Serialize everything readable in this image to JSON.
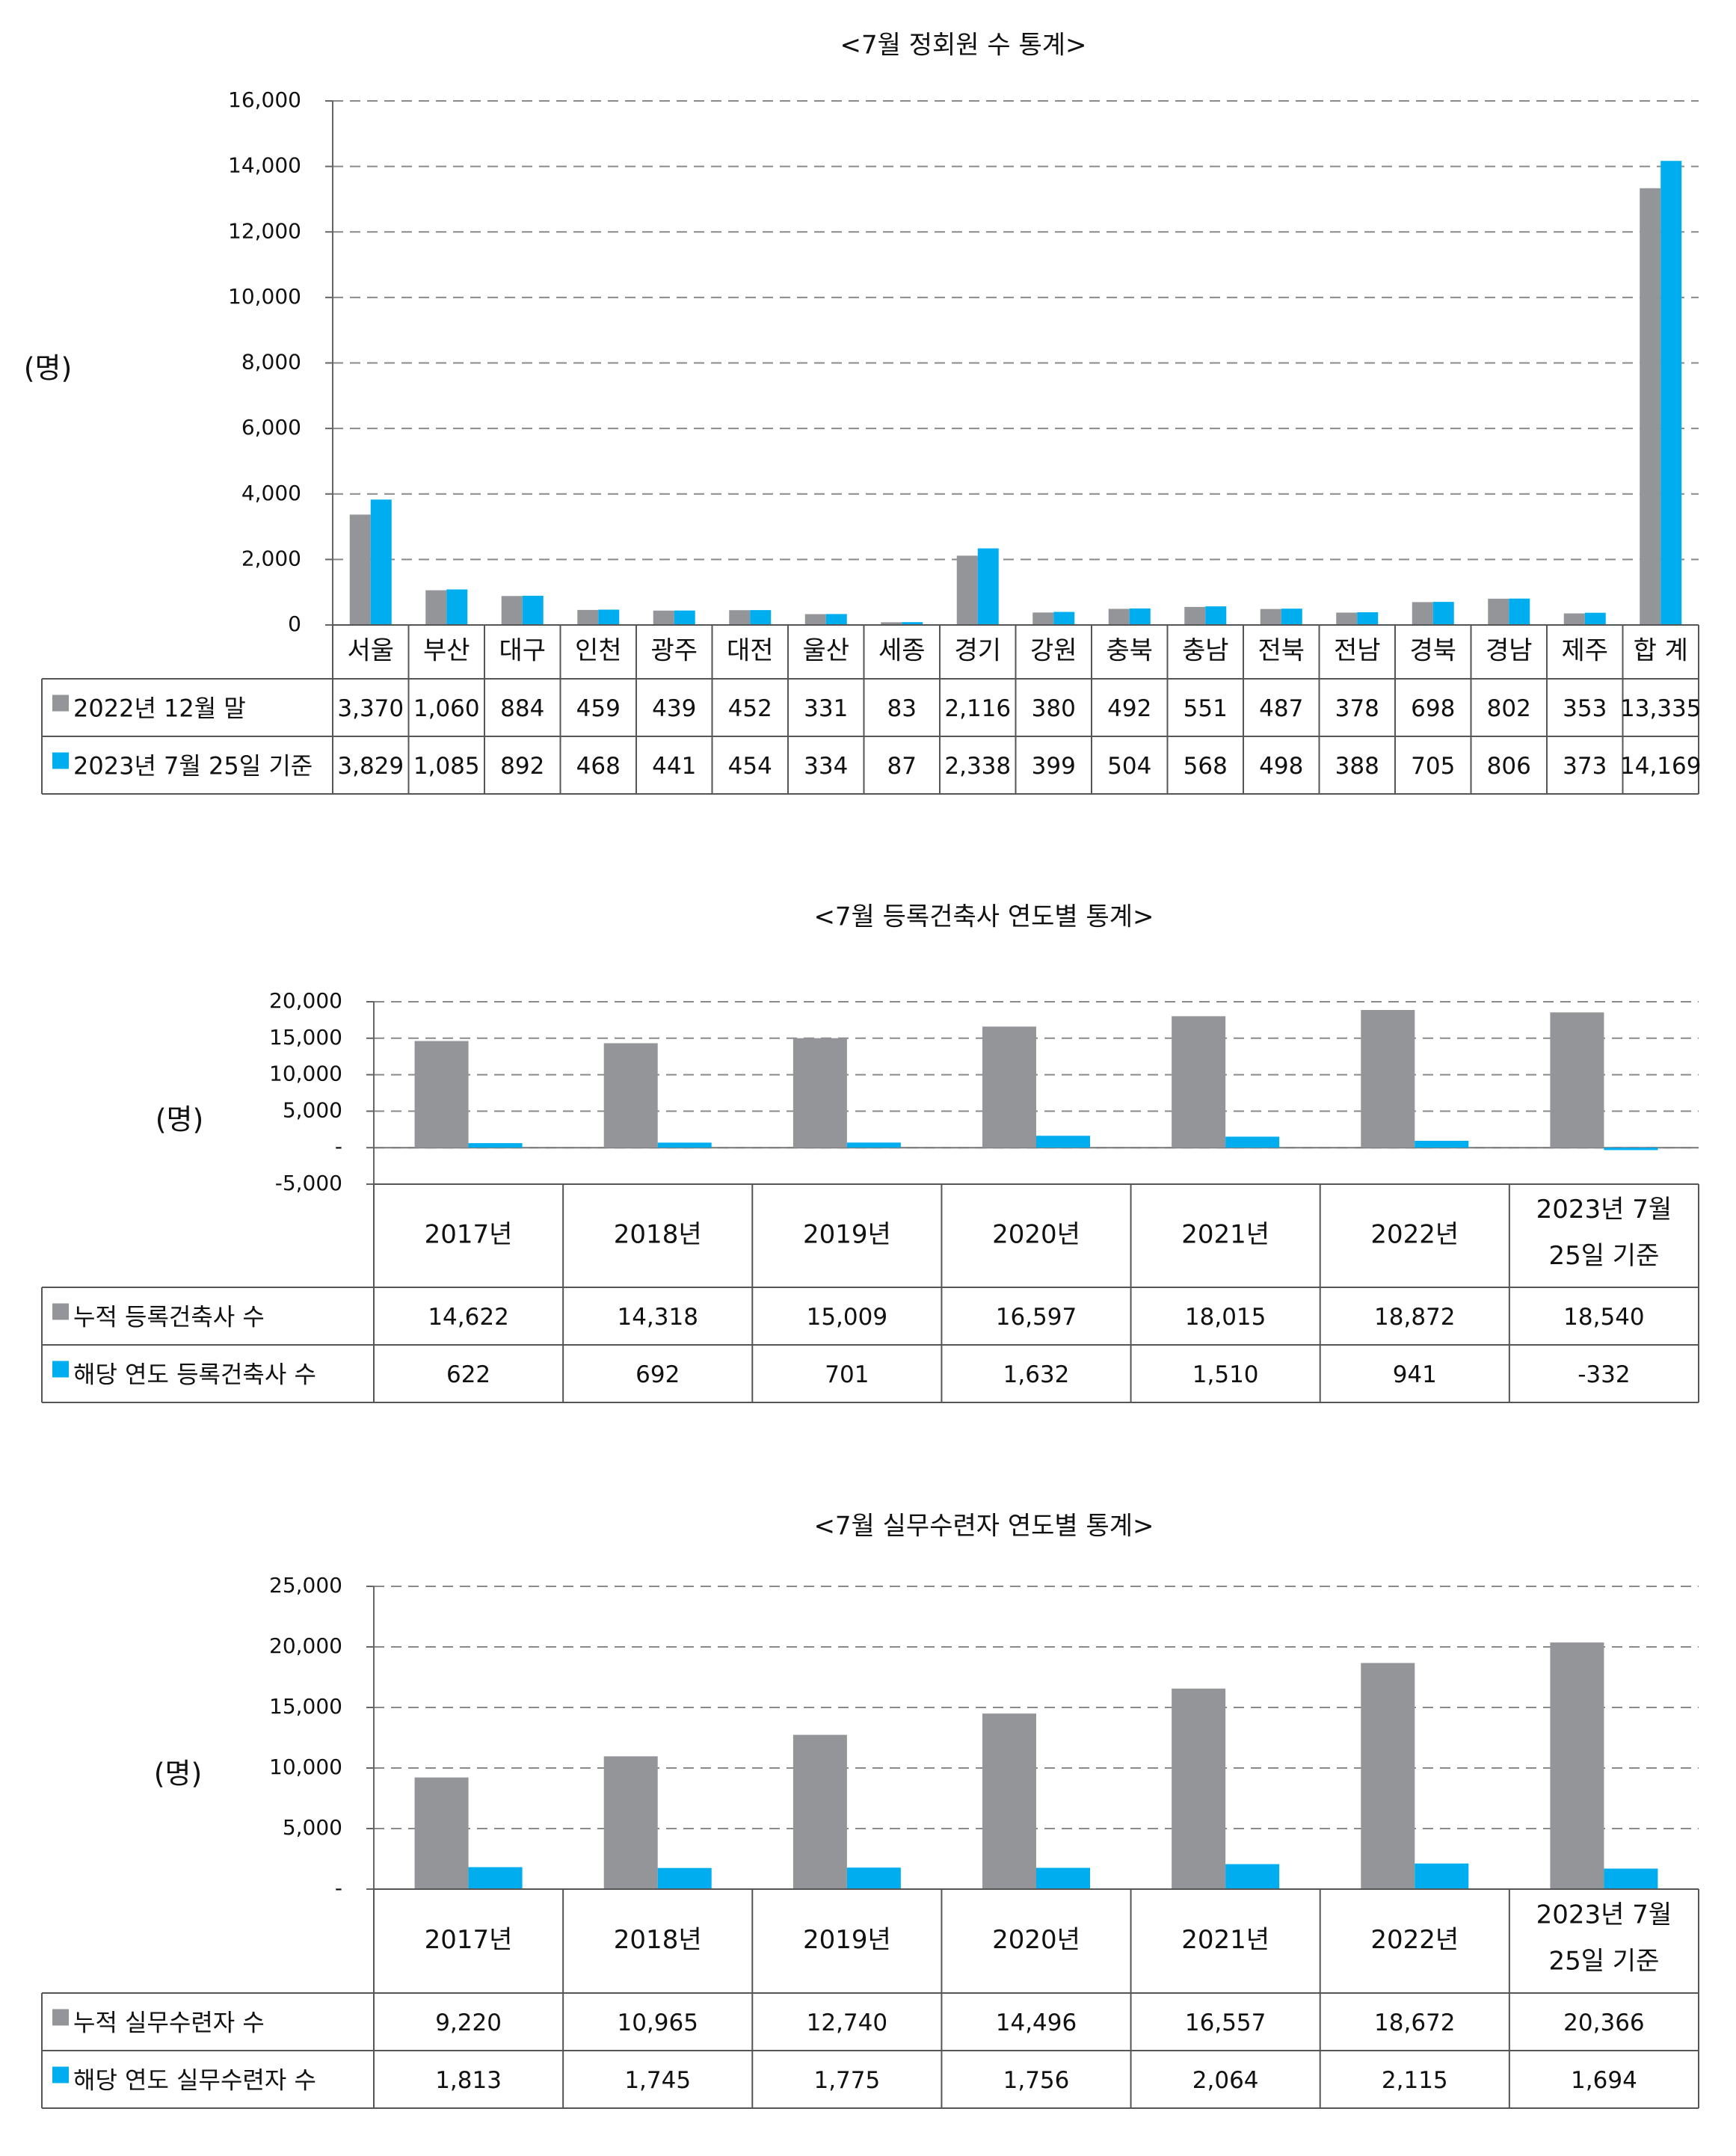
{
  "chart_data": [
    {
      "type": "bar",
      "title": "<7월 정회원 수 통계>",
      "ylabel": "(명)",
      "ylim": [
        0,
        16000
      ],
      "yticks": [
        "16,000",
        "14,000",
        "12,000",
        "10,000",
        "8,000",
        "6,000",
        "4,000",
        "2,000",
        "0"
      ],
      "ytick_values": [
        16000,
        14000,
        12000,
        10000,
        8000,
        6000,
        4000,
        2000,
        0
      ],
      "categories": [
        "서울",
        "부산",
        "대구",
        "인천",
        "광주",
        "대전",
        "울산",
        "세종",
        "경기",
        "강원",
        "충북",
        "충남",
        "전북",
        "전남",
        "경북",
        "경남",
        "제주",
        "합 계"
      ],
      "series": [
        {
          "name": "2022년 12월 말",
          "color": "#939598",
          "values": [
            3370,
            1060,
            884,
            459,
            439,
            452,
            331,
            83,
            2116,
            380,
            492,
            551,
            487,
            378,
            698,
            802,
            353,
            13335
          ],
          "labels": [
            "3,370",
            "1,060",
            "884",
            "459",
            "439",
            "452",
            "331",
            "83",
            "2,116",
            "380",
            "492",
            "551",
            "487",
            "378",
            "698",
            "802",
            "353",
            "13,335"
          ]
        },
        {
          "name": "2023년 7월 25일 기준",
          "color": "#00aeef",
          "values": [
            3829,
            1085,
            892,
            468,
            441,
            454,
            334,
            87,
            2338,
            399,
            504,
            568,
            498,
            388,
            705,
            806,
            373,
            14169
          ],
          "labels": [
            "3,829",
            "1,085",
            "892",
            "468",
            "441",
            "454",
            "334",
            "87",
            "2,338",
            "399",
            "504",
            "568",
            "498",
            "388",
            "705",
            "806",
            "373",
            "14,169"
          ]
        }
      ],
      "grid": true,
      "legend": "data-table"
    },
    {
      "type": "bar",
      "title": "<7월 등록건축사 연도별 통계>",
      "ylabel": "(명)",
      "ylim": [
        -5000,
        20000
      ],
      "yticks": [
        "20,000",
        "15,000",
        "10,000",
        "5,000",
        "-",
        "-5,000"
      ],
      "ytick_values": [
        20000,
        15000,
        10000,
        5000,
        0,
        -5000
      ],
      "categories": [
        "2017년",
        "2018년",
        "2019년",
        "2020년",
        "2021년",
        "2022년",
        "2023년 7월|25일 기준"
      ],
      "series": [
        {
          "name": "누적 등록건축사 수",
          "color": "#939598",
          "values": [
            14622,
            14318,
            15009,
            16597,
            18015,
            18872,
            18540
          ],
          "labels": [
            "14,622",
            "14,318",
            "15,009",
            "16,597",
            "18,015",
            "18,872",
            "18,540"
          ]
        },
        {
          "name": "해당 연도 등록건축사 수",
          "color": "#00aeef",
          "values": [
            622,
            692,
            701,
            1632,
            1510,
            941,
            -332
          ],
          "labels": [
            "622",
            "692",
            "701",
            "1,632",
            "1,510",
            "941",
            "-332"
          ]
        }
      ],
      "grid": true,
      "legend": "data-table"
    },
    {
      "type": "bar",
      "title": "<7월 실무수련자 연도별 통계>",
      "ylabel": "(명)",
      "ylim": [
        0,
        25000
      ],
      "yticks": [
        "25,000",
        "20,000",
        "15,000",
        "10,000",
        "5,000",
        "-"
      ],
      "ytick_values": [
        25000,
        20000,
        15000,
        10000,
        5000,
        0
      ],
      "categories": [
        "2017년",
        "2018년",
        "2019년",
        "2020년",
        "2021년",
        "2022년",
        "2023년 7월|25일 기준"
      ],
      "series": [
        {
          "name": "누적 실무수련자 수",
          "color": "#939598",
          "values": [
            9220,
            10965,
            12740,
            14496,
            16557,
            18672,
            20366
          ],
          "labels": [
            "9,220",
            "10,965",
            "12,740",
            "14,496",
            "16,557",
            "18,672",
            "20,366"
          ]
        },
        {
          "name": "해당 연도 실무수련자 수",
          "color": "#00aeef",
          "values": [
            1813,
            1745,
            1775,
            1756,
            2064,
            2115,
            1694
          ],
          "labels": [
            "1,813",
            "1,745",
            "1,775",
            "1,756",
            "2,064",
            "2,115",
            "1,694"
          ]
        }
      ],
      "grid": true,
      "legend": "data-table"
    }
  ]
}
